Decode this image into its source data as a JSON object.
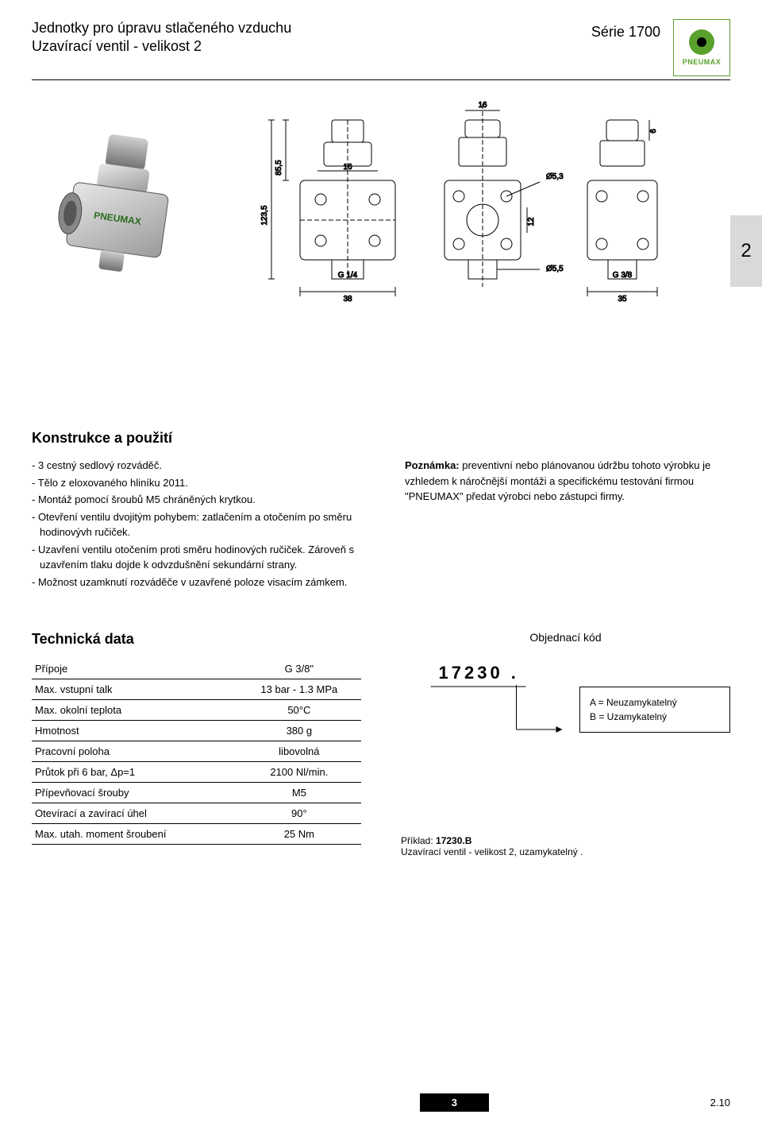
{
  "header": {
    "title_line1": "Jednotky pro úpravu stlačeného vzduchu",
    "title_line2": "Uzavírací ventil - velikost 2",
    "series": "Série 1700",
    "logo_text": "PNEUMAX"
  },
  "side_tab": "2",
  "drawing": {
    "dims": {
      "h_total": "123,5",
      "h_upper": "85,5",
      "h_mid": "16",
      "top_w": "16",
      "top_h": "6",
      "d53": "Ø5,3",
      "d55": "Ø5,5",
      "v12": "12",
      "port_left": "G 1/4",
      "port_right": "G 3/8",
      "w_left": "38",
      "w_right": "35"
    }
  },
  "construction": {
    "title": "Konstrukce a použití",
    "items": [
      "- 3 cestný sedlový rozváděč.",
      "- Tělo z eloxovaného hliníku 2011.",
      "- Montáž pomocí šroubů M5 chráněných krytkou.",
      "- Otevření ventilu dvojitým pohybem: zatlačením a otočením po směru hodinovývh ručiček.",
      "- Uzavření ventilu otočením proti směru hodinových ručiček. Zároveň s uzavřením tlaku dojde k odvzdušnění sekundární strany.",
      "- Možnost uzamknutí rozváděče v uzavřené poloze visacím zámkem."
    ],
    "note_label": "Poznámka:",
    "note_text": " preventivní nebo plánovanou údržbu tohoto výrobku je vzhledem k náročnější montáži a specifickému testování firmou \"PNEUMAX\" předat výrobci nebo zástupci firmy."
  },
  "tech": {
    "title": "Technická data",
    "rows": [
      {
        "label": "Přípoje",
        "value": "G 3/8\""
      },
      {
        "label": "Max. vstupní talk",
        "value": "13 bar - 1.3 MPa"
      },
      {
        "label": "Max. okolní teplota",
        "value": "50°C"
      },
      {
        "label": "Hmotnost",
        "value": "380 g"
      },
      {
        "label": "Pracovní poloha",
        "value": "libovolná"
      },
      {
        "label": "Průtok při 6 bar, Δp=1",
        "value": "2100 Nl/min."
      },
      {
        "label": "Přípevňovací šrouby",
        "value": "M5"
      },
      {
        "label": "Otevírací a zavírací úhel",
        "value": "90°"
      },
      {
        "label": "Max. utah. moment šroubení",
        "value": "25 Nm"
      }
    ]
  },
  "order": {
    "title": "Objednací kód",
    "code": "17230 .",
    "options": [
      "A = Neuzamykatelný",
      "B = Uzamykatelný"
    ],
    "example_label": "Příklad: ",
    "example_code": "17230.B",
    "example_text": "Uzavírací ventil - velikost 2, uzamykatelný ."
  },
  "footer": {
    "page_center": "3",
    "page_right": "2.10"
  }
}
